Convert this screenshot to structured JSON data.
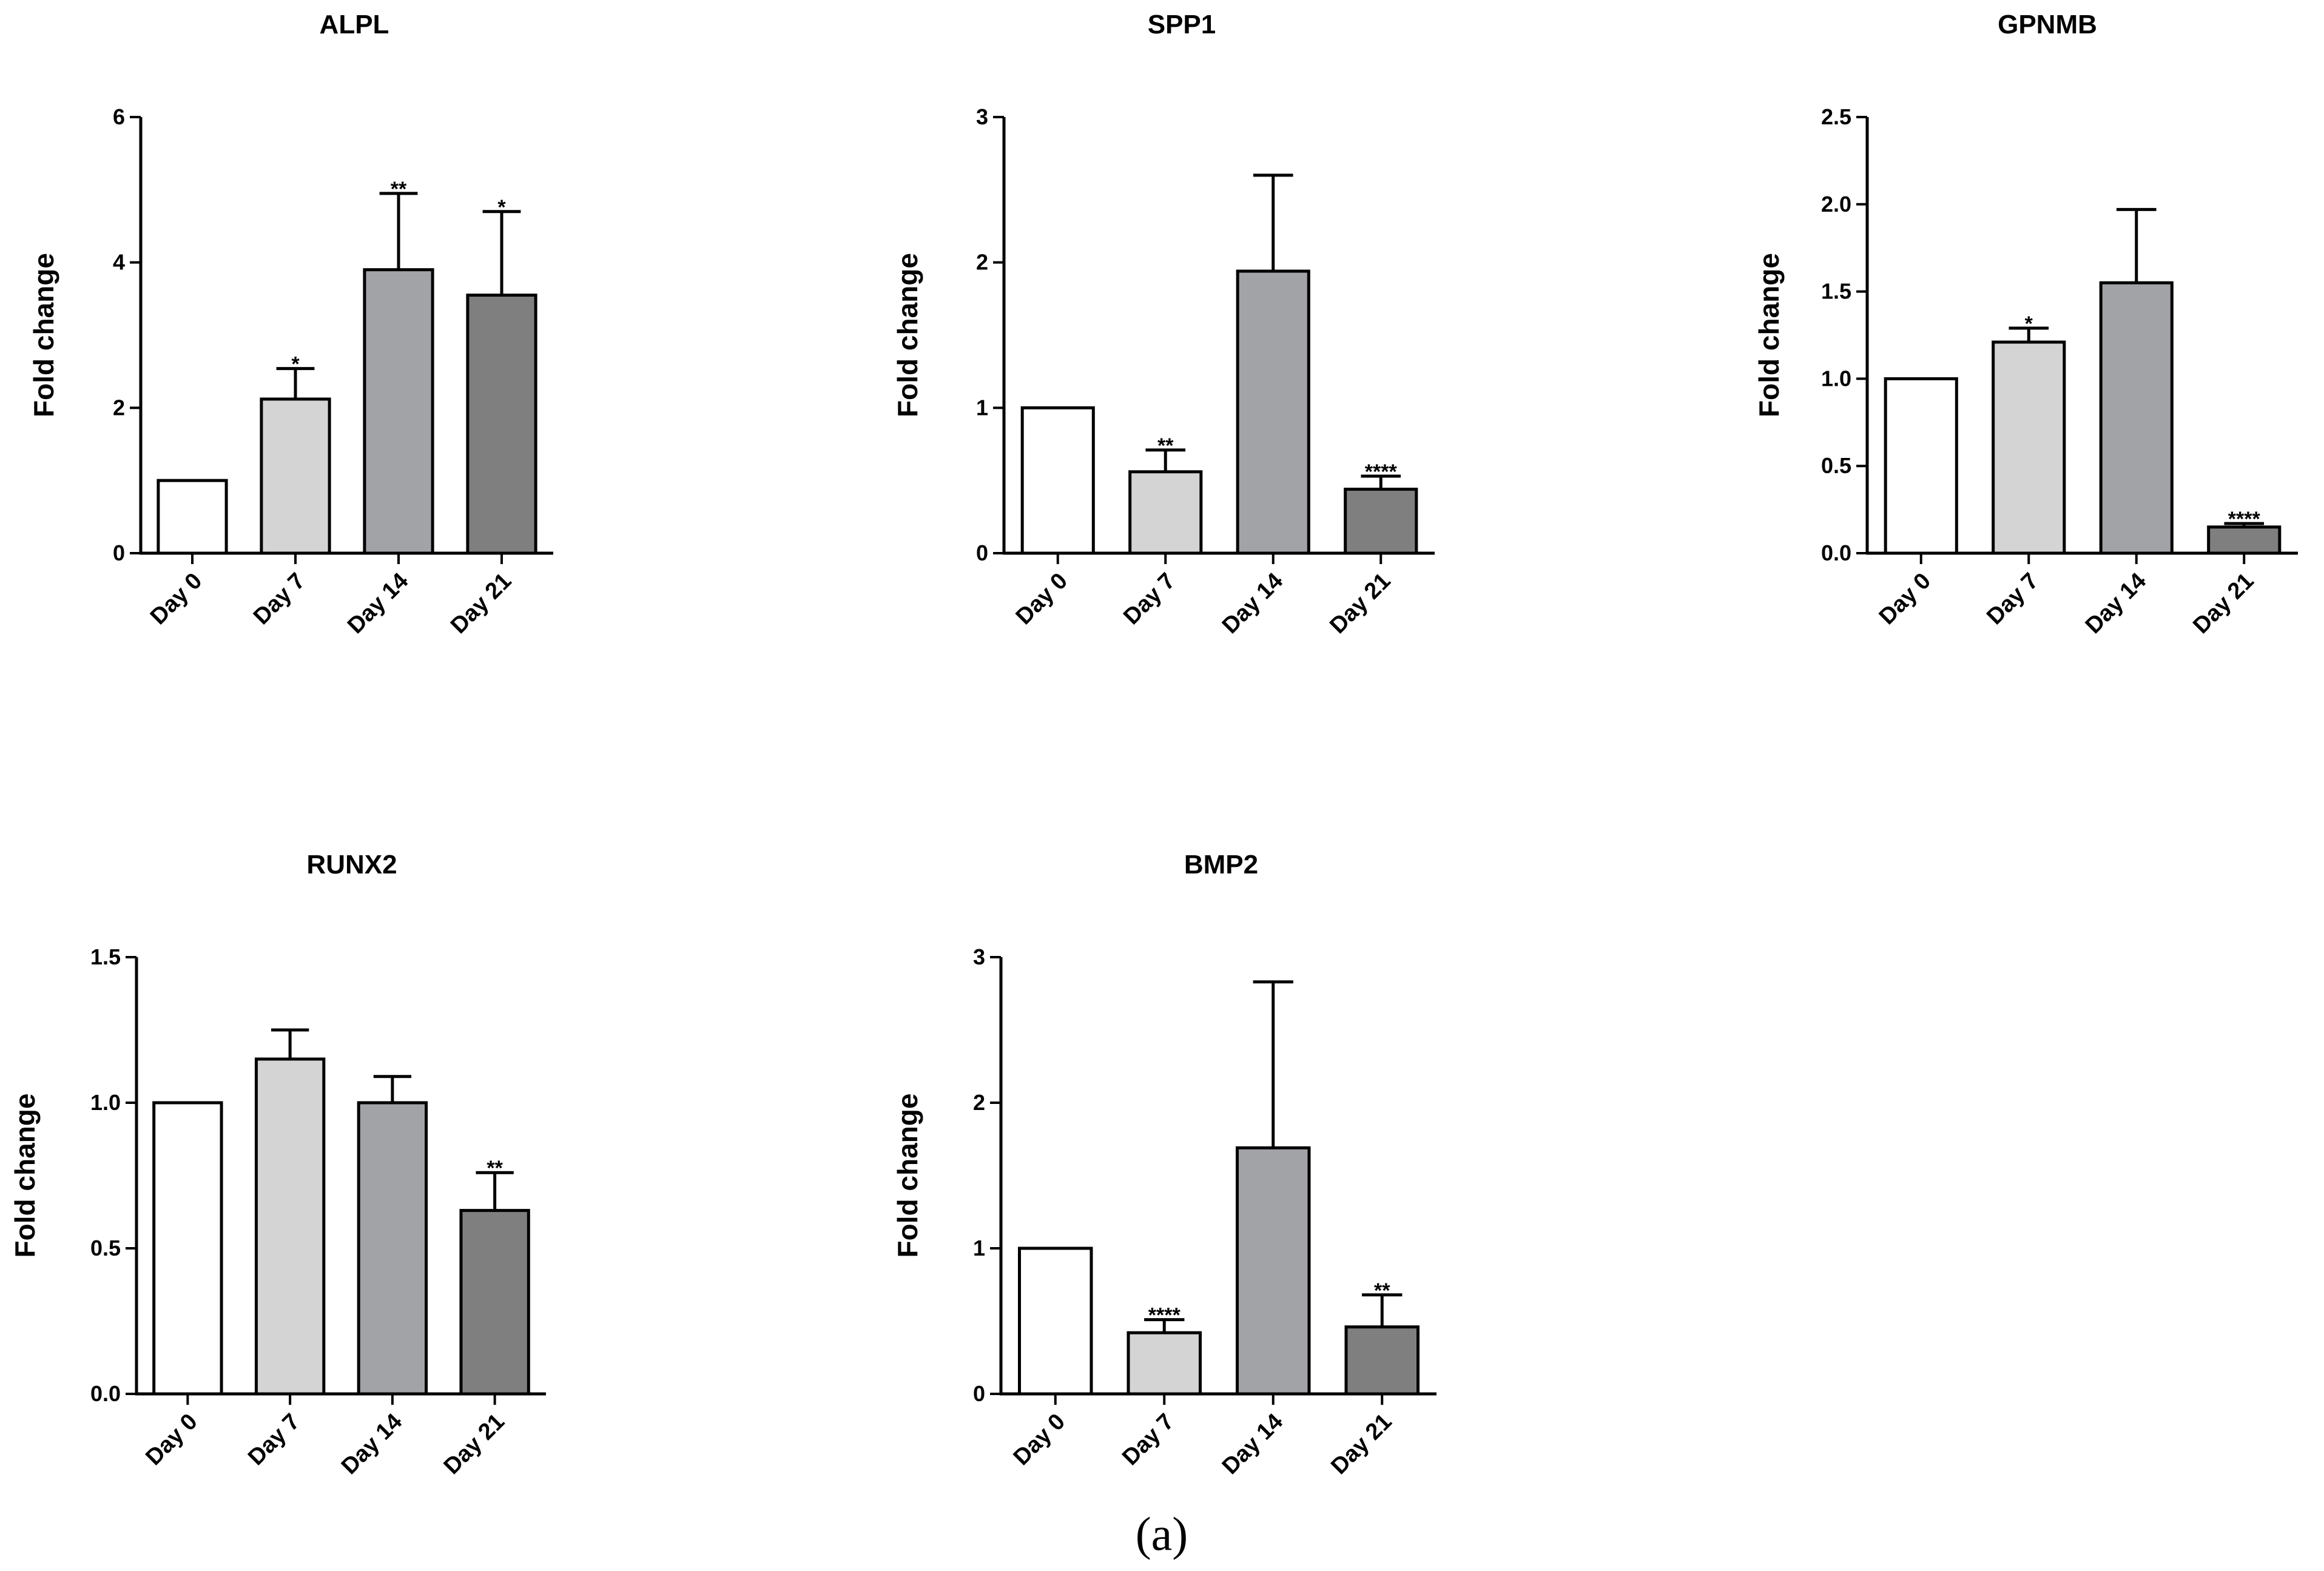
{
  "panel_label": "(a)",
  "colors": {
    "Day 0": "#ffffff",
    "Day 7": "#d4d4d4",
    "Day 14": "#a2a3a6",
    "Day 21": "#7f7f7f",
    "axis": "#000000"
  },
  "chart_data": [
    {
      "type": "bar",
      "title": "ALPL",
      "xlabel": "",
      "ylabel": "Fold change",
      "categories": [
        "Day 0",
        "Day 7",
        "Day 14",
        "Day 21"
      ],
      "values": [
        1.0,
        2.12,
        3.9,
        3.55
      ],
      "errors": [
        0,
        0.42,
        1.05,
        1.15
      ],
      "significance": [
        "",
        "*",
        "**",
        "*"
      ],
      "ylim": [
        0,
        6
      ],
      "yticks": [
        0,
        2,
        4,
        6
      ],
      "ytick_labels": [
        "0",
        "2",
        "4",
        "6"
      ],
      "grid": false
    },
    {
      "type": "bar",
      "title": "SPP1",
      "xlabel": "",
      "ylabel": "Fold change",
      "categories": [
        "Day 0",
        "Day 7",
        "Day 14",
        "Day 21"
      ],
      "values": [
        1.0,
        0.56,
        1.94,
        0.44
      ],
      "errors": [
        0,
        0.15,
        0.66,
        0.09
      ],
      "significance": [
        "",
        "**",
        "",
        "****"
      ],
      "ylim": [
        0,
        3
      ],
      "yticks": [
        0,
        1,
        2,
        3
      ],
      "ytick_labels": [
        "0",
        "1",
        "2",
        "3"
      ],
      "grid": false
    },
    {
      "type": "bar",
      "title": "GPNMB",
      "xlabel": "",
      "ylabel": "Fold change",
      "categories": [
        "Day 0",
        "Day 7",
        "Day 14",
        "Day 21"
      ],
      "values": [
        1.0,
        1.21,
        1.55,
        0.15
      ],
      "errors": [
        0,
        0.08,
        0.42,
        0.02
      ],
      "significance": [
        "",
        "*",
        "",
        "****"
      ],
      "ylim": [
        0,
        2.5
      ],
      "yticks": [
        0,
        0.5,
        1.0,
        1.5,
        2.0,
        2.5
      ],
      "ytick_labels": [
        "0.0",
        "0.5",
        "1.0",
        "1.5",
        "2.0",
        "2.5"
      ],
      "grid": false
    },
    {
      "type": "bar",
      "title": "RUNX2",
      "xlabel": "",
      "ylabel": "Fold change",
      "categories": [
        "Day 0",
        "Day 7",
        "Day 14",
        "Day 21"
      ],
      "values": [
        1.0,
        1.15,
        1.0,
        0.63
      ],
      "errors": [
        0,
        0.1,
        0.09,
        0.13
      ],
      "significance": [
        "",
        "",
        "",
        "**"
      ],
      "ylim": [
        0,
        1.5
      ],
      "yticks": [
        0,
        0.5,
        1.0,
        1.5
      ],
      "ytick_labels": [
        "0.0",
        "0.5",
        "1.0",
        "1.5"
      ],
      "grid": false
    },
    {
      "type": "bar",
      "title": "BMP2",
      "xlabel": "",
      "ylabel": "Fold change",
      "categories": [
        "Day 0",
        "Day 7",
        "Day 14",
        "Day 21"
      ],
      "values": [
        1.0,
        0.42,
        1.69,
        0.46
      ],
      "errors": [
        0,
        0.09,
        1.14,
        0.22
      ],
      "significance": [
        "",
        "****",
        "",
        "**"
      ],
      "ylim": [
        0,
        3
      ],
      "yticks": [
        0,
        1,
        2,
        3
      ],
      "ytick_labels": [
        "0",
        "1",
        "2",
        "3"
      ],
      "grid": false
    }
  ]
}
